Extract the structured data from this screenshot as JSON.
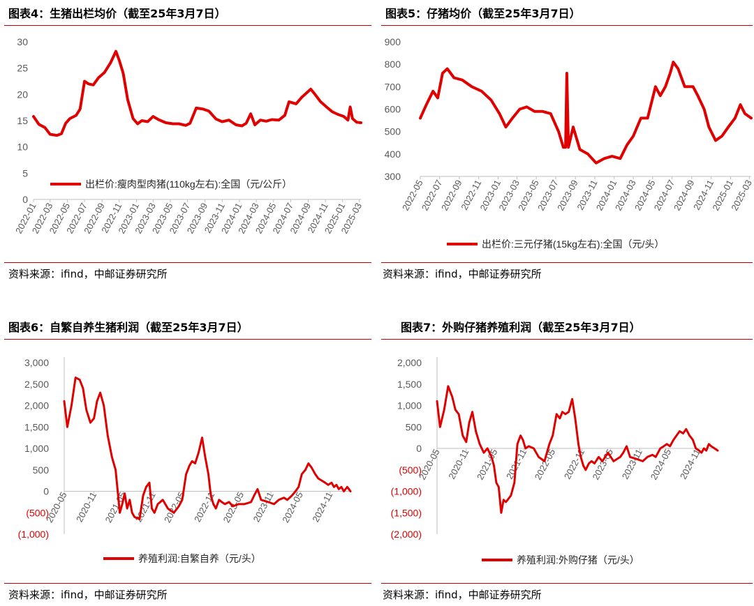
{
  "colors": {
    "accent": "#c00000",
    "line": "#e00000",
    "axis": "#bfbfbf",
    "tick": "#595959",
    "negative": "#e00000"
  },
  "panels": [
    {
      "title": "图表4：生猪出栏均价（截至25年3月7日）",
      "source": "资料来源：ifind，中邮证券研究所",
      "chart_data": {
        "type": "line",
        "title": "",
        "x_ticks": [
          "2022-01",
          "2022-03",
          "2022-05",
          "2022-07",
          "2022-09",
          "2022-11",
          "2023-01",
          "2023-03",
          "2023-05",
          "2023-07",
          "2023-09",
          "2023-11",
          "2024-01",
          "2024-03",
          "2024-05",
          "2024-07",
          "2024-09",
          "2024-11",
          "2025-01",
          "2025-03"
        ],
        "y_ticks": [
          "30",
          "25",
          "20",
          "15",
          "10",
          "5",
          "0"
        ],
        "ylim": [
          0,
          30
        ],
        "legend": "出栏价:瘦肉型肉猪(110kg左右):全国（元/公斤）",
        "legend_position": "inside-bottom",
        "series": [
          {
            "name": "出栏价:瘦肉型肉猪(110kg左右):全国（元/公斤）",
            "x": [
              "2022-01-01",
              "2022-01-20",
              "2022-02-10",
              "2022-03-01",
              "2022-03-25",
              "2022-04-10",
              "2022-04-25",
              "2022-05-10",
              "2022-06-01",
              "2022-06-15",
              "2022-07-01",
              "2022-07-15",
              "2022-08-01",
              "2022-08-20",
              "2022-09-10",
              "2022-10-01",
              "2022-10-20",
              "2022-11-01",
              "2022-11-15",
              "2022-12-01",
              "2022-12-20",
              "2023-01-05",
              "2023-01-20",
              "2023-02-10",
              "2023-03-01",
              "2023-03-20",
              "2023-04-15",
              "2023-05-10",
              "2023-06-01",
              "2023-06-25",
              "2023-07-10",
              "2023-08-01",
              "2023-08-25",
              "2023-09-15",
              "2023-10-10",
              "2023-11-01",
              "2023-11-25",
              "2023-12-20",
              "2024-01-10",
              "2024-01-25",
              "2024-02-10",
              "2024-02-25",
              "2024-03-15",
              "2024-04-05",
              "2024-04-25",
              "2024-05-20",
              "2024-06-10",
              "2024-06-25",
              "2024-07-20",
              "2024-08-10",
              "2024-08-25",
              "2024-09-10",
              "2024-09-25",
              "2024-10-15",
              "2024-11-05",
              "2024-11-25",
              "2024-12-15",
              "2025-01-05",
              "2025-01-20",
              "2025-01-28",
              "2025-02-05",
              "2025-02-20",
              "2025-03-07"
            ],
            "y": [
              15.8,
              14.3,
              13.7,
              12.4,
              12.2,
              12.5,
              14.5,
              15.4,
              16.0,
              17.2,
              22.5,
              22.0,
              21.8,
              23.2,
              24.2,
              26.0,
              28.2,
              26.5,
              24.0,
              19.0,
              15.4,
              14.4,
              15.0,
              14.8,
              15.8,
              15.2,
              14.6,
              14.4,
              14.4,
              14.1,
              14.5,
              17.4,
              17.2,
              16.8,
              15.3,
              14.8,
              15.1,
              14.2,
              14.0,
              14.5,
              16.3,
              14.2,
              15.1,
              14.9,
              15.2,
              15.1,
              16.0,
              18.6,
              18.2,
              19.5,
              20.2,
              21.0,
              20.0,
              18.6,
              17.6,
              16.7,
              16.2,
              15.8,
              15.1,
              17.6,
              15.4,
              14.7,
              14.6
            ]
          }
        ]
      }
    },
    {
      "title": "图表5：仔猪均价（截至25年3月7日）",
      "source": "资料来源：ifind，中邮证券研究所",
      "chart_data": {
        "type": "line",
        "title": "",
        "x_ticks": [
          "2022-05",
          "2022-07",
          "2022-09",
          "2022-11",
          "2023-01",
          "2023-03",
          "2023-05",
          "2023-07",
          "2023-09",
          "2023-11",
          "2024-01",
          "2024-03",
          "2024-05",
          "2024-07",
          "2024-09",
          "2024-11",
          "2025-01",
          "2025-03"
        ],
        "y_ticks": [
          "900",
          "800",
          "700",
          "600",
          "500",
          "400",
          "300"
        ],
        "ylim": [
          300,
          900
        ],
        "legend": "出栏价:三元仔猪(15kg左右):全国（元/头）",
        "legend_position": "below",
        "series": [
          {
            "name": "出栏价:三元仔猪(15kg左右):全国（元/头）",
            "x": [
              "2022-05-01",
              "2022-05-20",
              "2022-06-10",
              "2022-06-25",
              "2022-07-10",
              "2022-07-25",
              "2022-08-15",
              "2022-09-10",
              "2022-10-10",
              "2022-11-10",
              "2022-12-10",
              "2023-01-05",
              "2023-01-25",
              "2023-02-15",
              "2023-03-10",
              "2023-04-01",
              "2023-04-25",
              "2023-05-20",
              "2023-06-15",
              "2023-07-10",
              "2023-07-25",
              "2023-08-01",
              "2023-08-05",
              "2023-08-10",
              "2023-08-25",
              "2023-09-15",
              "2023-10-10",
              "2023-11-05",
              "2023-12-01",
              "2023-12-25",
              "2024-01-20",
              "2024-02-10",
              "2024-03-01",
              "2024-03-25",
              "2024-04-15",
              "2024-05-10",
              "2024-05-25",
              "2024-06-10",
              "2024-06-25",
              "2024-07-05",
              "2024-07-20",
              "2024-08-10",
              "2024-09-05",
              "2024-09-20",
              "2024-10-10",
              "2024-10-25",
              "2024-11-15",
              "2024-12-05",
              "2024-12-25",
              "2025-01-15",
              "2025-02-01",
              "2025-02-15",
              "2025-03-07"
            ],
            "y": [
              560,
              620,
              680,
              650,
              760,
              780,
              740,
              730,
              700,
              680,
              640,
              580,
              520,
              560,
              600,
              610,
              590,
              590,
              580,
              500,
              430,
              430,
              760,
              430,
              520,
              420,
              400,
              360,
              380,
              390,
              380,
              440,
              480,
              560,
              560,
              700,
              660,
              700,
              760,
              810,
              780,
              700,
              700,
              660,
              600,
              520,
              460,
              480,
              520,
              560,
              620,
              580,
              560
            ]
          }
        ]
      }
    },
    {
      "title": "图表6：自繁自养生猪利润（截至25年3月7日）",
      "source": "资料来源：ifind，中邮证券研究所",
      "chart_data": {
        "type": "line",
        "title": "",
        "x_ticks": [
          "2020-05",
          "2020-11",
          "2021-05",
          "2021-11",
          "2022-05",
          "2022-11",
          "2023-05",
          "2023-11",
          "2024-05",
          "2024-11"
        ],
        "y_ticks": [
          "3,000",
          "2,500",
          "2,000",
          "1,500",
          "1,000",
          "500",
          "0",
          "(500)",
          "(1,000)"
        ],
        "ylim": [
          -1000,
          3000
        ],
        "legend": "养殖利润:自繁自养（元/头）",
        "legend_position": "below",
        "series": [
          {
            "name": "养殖利润:自繁自养（元/头）",
            "x": [
              "2020-05-01",
              "2020-05-20",
              "2020-06-15",
              "2020-07-10",
              "2020-08-05",
              "2020-08-25",
              "2020-09-15",
              "2020-10-10",
              "2020-11-01",
              "2020-11-20",
              "2020-12-10",
              "2021-01-01",
              "2021-01-25",
              "2021-02-20",
              "2021-03-15",
              "2021-04-10",
              "2021-04-25",
              "2021-05-10",
              "2021-05-25",
              "2021-06-10",
              "2021-06-25",
              "2021-07-10",
              "2021-08-10",
              "2021-09-01",
              "2021-09-20",
              "2021-10-10",
              "2021-10-25",
              "2021-11-10",
              "2021-12-01",
              "2022-01-01",
              "2022-02-01",
              "2022-03-10",
              "2022-04-10",
              "2022-05-01",
              "2022-05-25",
              "2022-06-15",
              "2022-07-01",
              "2022-07-20",
              "2022-08-10",
              "2022-09-01",
              "2022-09-20",
              "2022-10-10",
              "2022-10-25",
              "2022-11-10",
              "2022-11-25",
              "2022-12-15",
              "2023-01-01",
              "2023-01-20",
              "2023-02-15",
              "2023-03-10",
              "2023-04-15",
              "2023-05-20",
              "2023-07-01",
              "2023-07-20",
              "2023-08-10",
              "2023-09-01",
              "2023-10-15",
              "2023-11-20",
              "2023-12-20",
              "2024-01-20",
              "2024-02-10",
              "2024-03-10",
              "2024-04-01",
              "2024-04-20",
              "2024-05-10",
              "2024-06-01",
              "2024-06-20",
              "2024-07-10",
              "2024-08-01",
              "2024-08-20",
              "2024-09-10",
              "2024-10-01",
              "2024-10-20",
              "2024-11-10",
              "2024-11-25",
              "2024-12-10",
              "2024-12-25",
              "2025-01-10",
              "2025-01-25",
              "2025-02-15",
              "2025-03-07"
            ],
            "y": [
              2100,
              1500,
              2000,
              2650,
              2600,
              2400,
              1900,
              1600,
              1700,
              2100,
              2300,
              2000,
              1300,
              800,
              500,
              -500,
              -300,
              -50,
              -400,
              -200,
              -500,
              -600,
              -650,
              -100,
              100,
              200,
              -400,
              -500,
              -300,
              -200,
              -400,
              -500,
              -350,
              -200,
              400,
              600,
              700,
              650,
              900,
              1250,
              800,
              400,
              -100,
              -300,
              -400,
              -200,
              -250,
              -300,
              -250,
              -350,
              -300,
              -300,
              -250,
              -100,
              50,
              -200,
              -250,
              -300,
              -200,
              -150,
              -200,
              -100,
              0,
              100,
              400,
              500,
              650,
              550,
              400,
              300,
              250,
              200,
              150,
              200,
              100,
              150,
              50,
              100,
              0,
              100,
              0
            ]
          }
        ]
      }
    },
    {
      "title": "图表7：外购仔猪养殖利润（截至25年3月7日）",
      "source": "资料来源：ifind，中邮证券研究所",
      "chart_data": {
        "type": "line",
        "title": "",
        "x_ticks": [
          "2020-05",
          "2020-11",
          "2021-05",
          "2021-11",
          "2022-05",
          "2022-11",
          "2023-05",
          "2023-11",
          "2024-05",
          "2024-11"
        ],
        "y_ticks": [
          "2,000",
          "1,500",
          "1,000",
          "500",
          "0",
          "(500)",
          "(1,000)",
          "(1,500)",
          "(2,000)"
        ],
        "ylim": [
          -2000,
          2000
        ],
        "legend": "养殖利润:外购仔猪（元/头）",
        "legend_position": "below",
        "series": [
          {
            "name": "养殖利润:外购仔猪（元/头）",
            "x": [
              "2020-05-01",
              "2020-05-20",
              "2020-06-15",
              "2020-07-10",
              "2020-08-05",
              "2020-08-25",
              "2020-09-15",
              "2020-10-10",
              "2020-11-01",
              "2020-11-20",
              "2020-12-10",
              "2021-01-01",
              "2021-01-25",
              "2021-02-20",
              "2021-03-15",
              "2021-04-10",
              "2021-04-25",
              "2021-05-10",
              "2021-05-25",
              "2021-06-10",
              "2021-06-25",
              "2021-07-10",
              "2021-08-10",
              "2021-09-01",
              "2021-09-20",
              "2021-10-10",
              "2021-10-25",
              "2021-11-10",
              "2021-12-01",
              "2022-01-01",
              "2022-02-01",
              "2022-03-10",
              "2022-04-10",
              "2022-05-01",
              "2022-05-25",
              "2022-06-15",
              "2022-07-01",
              "2022-07-20",
              "2022-08-10",
              "2022-09-01",
              "2022-09-20",
              "2022-10-10",
              "2022-10-25",
              "2022-11-10",
              "2022-11-25",
              "2022-12-15",
              "2023-01-01",
              "2023-01-20",
              "2023-02-15",
              "2023-03-10",
              "2023-04-15",
              "2023-05-20",
              "2023-07-01",
              "2023-07-20",
              "2023-08-10",
              "2023-09-01",
              "2023-10-15",
              "2023-11-20",
              "2023-12-20",
              "2024-01-20",
              "2024-02-10",
              "2024-03-10",
              "2024-04-01",
              "2024-04-20",
              "2024-05-10",
              "2024-06-01",
              "2024-06-20",
              "2024-07-10",
              "2024-08-01",
              "2024-08-20",
              "2024-09-10",
              "2024-10-01",
              "2024-10-20",
              "2024-11-10",
              "2024-11-25",
              "2024-12-10",
              "2024-12-25",
              "2025-01-10",
              "2025-01-25",
              "2025-02-15",
              "2025-03-07"
            ],
            "y": [
              1100,
              500,
              900,
              1450,
              1200,
              900,
              800,
              300,
              150,
              600,
              850,
              400,
              100,
              -100,
              0,
              -200,
              -400,
              -800,
              -900,
              -1500,
              -1200,
              -1250,
              -1100,
              -800,
              100,
              300,
              200,
              0,
              50,
              0,
              -200,
              -300,
              100,
              300,
              800,
              700,
              850,
              800,
              850,
              1150,
              700,
              100,
              -200,
              -400,
              -500,
              -350,
              -300,
              -350,
              -200,
              -300,
              -100,
              -300,
              -200,
              -100,
              50,
              -200,
              -250,
              -300,
              -200,
              -150,
              -200,
              0,
              50,
              100,
              50,
              200,
              300,
              400,
              350,
              450,
              300,
              200,
              0,
              -50,
              -100,
              0,
              -50,
              100,
              50,
              0,
              -50
            ]
          }
        ]
      }
    }
  ]
}
